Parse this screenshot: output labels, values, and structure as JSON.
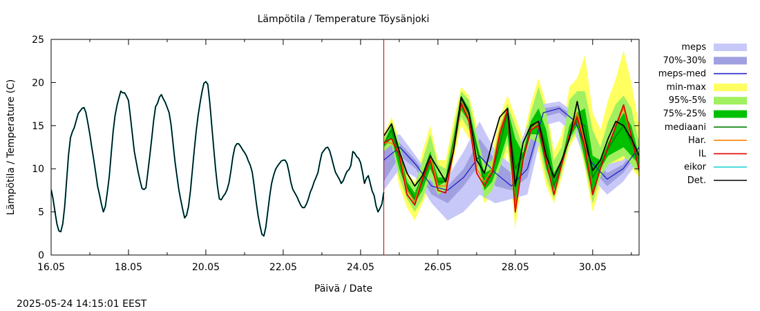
{
  "chart_data": {
    "type": "line",
    "title": "Lämpötila / Temperature   Töysänjoki",
    "xlabel": "Päivä / Date",
    "ylabel": "Lämpötila / Temperature (C)",
    "timestamp": "2025-05-24 14:15:01 EEST",
    "x_unit": "days since 16.05 00:00",
    "xlim": [
      0,
      15.2
    ],
    "ylim": [
      0,
      25
    ],
    "y_ticks": [
      "0",
      "5",
      "10",
      "15",
      "20",
      "25"
    ],
    "x_ticks": [
      {
        "label": "16.05",
        "x": 0
      },
      {
        "label": "18.05",
        "x": 2
      },
      {
        "label": "20.05",
        "x": 4
      },
      {
        "label": "22.05",
        "x": 6
      },
      {
        "label": "24.05",
        "x": 8
      },
      {
        "label": "26.05",
        "x": 10
      },
      {
        "label": "28.05",
        "x": 12
      },
      {
        "label": "30.05",
        "x": 14
      }
    ],
    "forecast_start_x": 8.6,
    "colors": {
      "meps": "#c8c8f8",
      "p70_30": "#a0a0e0",
      "meps_med": "#2020c8",
      "min_max": "#ffff60",
      "p95_5": "#a0f060",
      "p75_25": "#00c000",
      "mediaani": "#008000",
      "har": "#ff8000",
      "il": "#e00000",
      "eikor": "#20d0d0",
      "det": "#000000",
      "now_line": "#c00000"
    },
    "legend": [
      {
        "label": "meps",
        "kind": "fill",
        "color": "#c8c8f8"
      },
      {
        "label": "70%-30%",
        "kind": "fill",
        "color": "#a0a0e0"
      },
      {
        "label": "meps-med",
        "kind": "line",
        "color": "#2020c8"
      },
      {
        "label": "min-max",
        "kind": "fill",
        "color": "#ffff60"
      },
      {
        "label": "95%-5%",
        "kind": "fill",
        "color": "#a0f060"
      },
      {
        "label": "75%-25%",
        "kind": "fill",
        "color": "#00c000"
      },
      {
        "label": "mediaani",
        "kind": "line",
        "color": "#008000"
      },
      {
        "label": "Har.",
        "kind": "line",
        "color": "#ff8000"
      },
      {
        "label": "IL",
        "kind": "line",
        "color": "#e00000"
      },
      {
        "label": "eikor",
        "kind": "line",
        "color": "#20d0d0"
      },
      {
        "label": "Det.",
        "kind": "line",
        "color": "#000000"
      }
    ],
    "observed": [
      [
        0.0,
        7.6
      ],
      [
        0.05,
        6.5
      ],
      [
        0.1,
        5.0
      ],
      [
        0.15,
        3.6
      ],
      [
        0.2,
        2.8
      ],
      [
        0.25,
        2.7
      ],
      [
        0.3,
        3.6
      ],
      [
        0.35,
        5.6
      ],
      [
        0.4,
        8.6
      ],
      [
        0.45,
        11.6
      ],
      [
        0.5,
        13.6
      ],
      [
        0.55,
        14.3
      ],
      [
        0.6,
        14.8
      ],
      [
        0.65,
        15.6
      ],
      [
        0.7,
        16.4
      ],
      [
        0.75,
        16.7
      ],
      [
        0.8,
        17.0
      ],
      [
        0.85,
        17.1
      ],
      [
        0.9,
        16.5
      ],
      [
        0.95,
        15.3
      ],
      [
        1.0,
        14.0
      ],
      [
        1.05,
        12.5
      ],
      [
        1.1,
        11.1
      ],
      [
        1.15,
        9.6
      ],
      [
        1.2,
        8.0
      ],
      [
        1.25,
        7.0
      ],
      [
        1.3,
        5.9
      ],
      [
        1.35,
        5.0
      ],
      [
        1.4,
        5.6
      ],
      [
        1.45,
        7.2
      ],
      [
        1.5,
        9.0
      ],
      [
        1.55,
        11.6
      ],
      [
        1.6,
        14.2
      ],
      [
        1.65,
        16.1
      ],
      [
        1.7,
        17.3
      ],
      [
        1.75,
        18.2
      ],
      [
        1.8,
        19.0
      ],
      [
        1.85,
        18.8
      ],
      [
        1.9,
        18.8
      ],
      [
        1.95,
        18.4
      ],
      [
        2.0,
        17.9
      ],
      [
        2.05,
        16.0
      ],
      [
        2.1,
        14.0
      ],
      [
        2.15,
        12.0
      ],
      [
        2.2,
        10.8
      ],
      [
        2.25,
        9.6
      ],
      [
        2.3,
        8.6
      ],
      [
        2.35,
        7.7
      ],
      [
        2.4,
        7.6
      ],
      [
        2.45,
        7.8
      ],
      [
        2.5,
        9.6
      ],
      [
        2.55,
        11.5
      ],
      [
        2.6,
        13.5
      ],
      [
        2.65,
        15.6
      ],
      [
        2.7,
        17.2
      ],
      [
        2.75,
        17.6
      ],
      [
        2.8,
        18.3
      ],
      [
        2.85,
        18.6
      ],
      [
        2.9,
        18.1
      ],
      [
        2.95,
        17.7
      ],
      [
        3.0,
        17.1
      ],
      [
        3.05,
        16.5
      ],
      [
        3.1,
        15.1
      ],
      [
        3.15,
        13.0
      ],
      [
        3.2,
        10.9
      ],
      [
        3.25,
        9.2
      ],
      [
        3.3,
        7.6
      ],
      [
        3.35,
        6.4
      ],
      [
        3.4,
        5.3
      ],
      [
        3.45,
        4.3
      ],
      [
        3.5,
        4.6
      ],
      [
        3.55,
        5.6
      ],
      [
        3.6,
        7.4
      ],
      [
        3.65,
        9.8
      ],
      [
        3.7,
        12.2
      ],
      [
        3.75,
        14.4
      ],
      [
        3.8,
        16.2
      ],
      [
        3.85,
        17.6
      ],
      [
        3.9,
        18.9
      ],
      [
        3.95,
        19.9
      ],
      [
        4.0,
        20.1
      ],
      [
        4.05,
        19.8
      ],
      [
        4.1,
        17.8
      ],
      [
        4.15,
        15.2
      ],
      [
        4.2,
        12.6
      ],
      [
        4.25,
        10.1
      ],
      [
        4.3,
        8.0
      ],
      [
        4.35,
        6.5
      ],
      [
        4.4,
        6.4
      ],
      [
        4.45,
        6.8
      ],
      [
        4.5,
        7.1
      ],
      [
        4.55,
        7.6
      ],
      [
        4.6,
        8.4
      ],
      [
        4.65,
        9.8
      ],
      [
        4.7,
        11.4
      ],
      [
        4.75,
        12.5
      ],
      [
        4.8,
        12.9
      ],
      [
        4.85,
        12.9
      ],
      [
        4.9,
        12.6
      ],
      [
        4.95,
        12.2
      ],
      [
        5.0,
        11.9
      ],
      [
        5.05,
        11.5
      ],
      [
        5.1,
        10.9
      ],
      [
        5.15,
        10.4
      ],
      [
        5.2,
        9.6
      ],
      [
        5.25,
        8.0
      ],
      [
        5.3,
        6.2
      ],
      [
        5.35,
        4.6
      ],
      [
        5.4,
        3.4
      ],
      [
        5.45,
        2.4
      ],
      [
        5.5,
        2.2
      ],
      [
        5.55,
        3.2
      ],
      [
        5.6,
        5.0
      ],
      [
        5.65,
        6.8
      ],
      [
        5.7,
        8.3
      ],
      [
        5.75,
        9.2
      ],
      [
        5.8,
        9.9
      ],
      [
        5.85,
        10.3
      ],
      [
        5.9,
        10.6
      ],
      [
        5.95,
        10.9
      ],
      [
        6.0,
        11.0
      ],
      [
        6.05,
        11.0
      ],
      [
        6.1,
        10.6
      ],
      [
        6.15,
        9.6
      ],
      [
        6.2,
        8.4
      ],
      [
        6.25,
        7.6
      ],
      [
        6.3,
        7.2
      ],
      [
        6.35,
        6.8
      ],
      [
        6.4,
        6.3
      ],
      [
        6.45,
        5.8
      ],
      [
        6.5,
        5.5
      ],
      [
        6.55,
        5.5
      ],
      [
        6.6,
        5.9
      ],
      [
        6.65,
        6.5
      ],
      [
        6.7,
        7.3
      ],
      [
        6.75,
        7.8
      ],
      [
        6.8,
        8.5
      ],
      [
        6.85,
        9.0
      ],
      [
        6.9,
        9.6
      ],
      [
        6.95,
        10.8
      ],
      [
        7.0,
        11.8
      ],
      [
        7.05,
        12.1
      ],
      [
        7.1,
        12.4
      ],
      [
        7.15,
        12.5
      ],
      [
        7.2,
        12.1
      ],
      [
        7.25,
        11.3
      ],
      [
        7.3,
        10.4
      ],
      [
        7.35,
        9.6
      ],
      [
        7.4,
        9.2
      ],
      [
        7.45,
        8.8
      ],
      [
        7.5,
        8.3
      ],
      [
        7.55,
        8.6
      ],
      [
        7.6,
        9.2
      ],
      [
        7.65,
        9.7
      ],
      [
        7.7,
        9.9
      ],
      [
        7.75,
        10.4
      ],
      [
        7.8,
        12.0
      ],
      [
        7.85,
        11.8
      ],
      [
        7.9,
        11.4
      ],
      [
        7.95,
        11.2
      ],
      [
        8.0,
        10.7
      ],
      [
        8.05,
        9.6
      ],
      [
        8.1,
        8.3
      ],
      [
        8.15,
        8.9
      ],
      [
        8.2,
        9.2
      ],
      [
        8.25,
        8.3
      ],
      [
        8.3,
        7.4
      ],
      [
        8.35,
        6.9
      ],
      [
        8.4,
        5.7
      ],
      [
        8.45,
        5.0
      ],
      [
        8.5,
        5.4
      ],
      [
        8.55,
        5.9
      ],
      [
        8.6,
        7.3
      ]
    ],
    "forecast_x": [
      8.6,
      8.8,
      9.0,
      9.2,
      9.4,
      9.6,
      9.8,
      10.0,
      10.2,
      10.4,
      10.6,
      10.8,
      11.0,
      11.2,
      11.4,
      11.6,
      11.8,
      12.0,
      12.2,
      12.4,
      12.6,
      12.8,
      13.0,
      13.2,
      13.4,
      13.6,
      13.8,
      14.0,
      14.2,
      14.4,
      14.6,
      14.8,
      15.0,
      15.2
    ],
    "meps_band": {
      "low": [
        7.5,
        10.0,
        9.0,
        6.0,
        4.0,
        5.0,
        7.0,
        6.0,
        6.5,
        7.0,
        15.0,
        15.5,
        14.0,
        9.0,
        7.0,
        8.5,
        11.0
      ],
      "high": [
        13.5,
        14.0,
        11.5,
        9.0,
        9.0,
        12.0,
        15.5,
        12.0,
        10.5,
        15.0,
        17.5,
        17.8,
        16.5,
        12.0,
        10.5,
        11.0,
        13.5
      ]
    },
    "p70_30_band": {
      "low": [
        8.5,
        11.5,
        10.0,
        7.0,
        6.0,
        8.0,
        10.5,
        8.0,
        7.5,
        9.0,
        16.0,
        16.5,
        15.0,
        10.0,
        8.0,
        9.5,
        12.0
      ],
      "high": [
        12.5,
        13.0,
        11.0,
        8.5,
        8.0,
        10.0,
        13.5,
        11.0,
        9.5,
        13.0,
        17.0,
        17.3,
        16.0,
        11.5,
        9.5,
        10.5,
        13.0
      ]
    },
    "meps_med": [
      11.0,
      12.5,
      10.5,
      8.0,
      7.5,
      9.0,
      11.5,
      9.5,
      8.0,
      10.0,
      16.5,
      17.0,
      15.5,
      10.8,
      8.8,
      10.0,
      12.5
    ],
    "min_max_band": {
      "low": [
        11.0,
        12.2,
        8.0,
        5.5,
        4.0,
        6.0,
        8.0,
        6.5,
        7.0,
        11.0,
        15.0,
        13.5,
        9.5,
        6.0,
        7.0,
        9.0,
        12.0,
        3.0,
        10.0,
        13.0,
        12.0,
        8.0,
        6.0,
        9.0,
        12.5,
        14.0,
        10.0,
        5.0,
        8.0,
        10.0,
        10.5,
        11.0,
        10.0,
        9.0
      ],
      "high": [
        14.0,
        16.0,
        13.5,
        9.5,
        8.5,
        12.0,
        15.0,
        11.0,
        11.0,
        15.5,
        19.5,
        18.5,
        15.0,
        11.5,
        12.0,
        16.0,
        18.5,
        16.0,
        13.5,
        17.5,
        20.5,
        17.5,
        12.0,
        14.0,
        19.5,
        20.5,
        23.2,
        16.5,
        14.5,
        18.0,
        20.5,
        23.7,
        20.0,
        15.0
      ]
    },
    "p95_5_band": {
      "low": [
        12.0,
        12.8,
        9.0,
        6.5,
        5.0,
        6.5,
        9.0,
        7.0,
        7.5,
        11.5,
        16.0,
        14.5,
        11.0,
        6.5,
        7.5,
        10.0,
        13.0,
        4.5,
        10.5,
        13.5,
        13.0,
        9.0,
        6.5,
        9.5,
        13.0,
        14.5,
        10.5,
        6.0,
        9.0,
        10.5,
        11.0,
        11.5,
        10.5,
        9.5
      ],
      "high": [
        13.5,
        15.5,
        13.0,
        9.0,
        8.0,
        11.0,
        14.0,
        10.5,
        10.0,
        14.5,
        19.0,
        18.0,
        14.0,
        10.5,
        11.0,
        15.0,
        17.5,
        15.0,
        12.5,
        16.5,
        19.5,
        16.5,
        11.0,
        12.5,
        18.0,
        19.0,
        19.0,
        14.5,
        12.5,
        15.5,
        17.5,
        18.5,
        17.0,
        13.0
      ]
    },
    "p75_25_band": {
      "low": [
        12.5,
        13.5,
        10.0,
        7.5,
        6.0,
        7.5,
        10.0,
        8.0,
        8.5,
        12.5,
        16.8,
        15.5,
        12.0,
        7.5,
        8.5,
        11.0,
        14.0,
        5.5,
        11.0,
        14.0,
        14.0,
        10.0,
        7.5,
        10.5,
        13.5,
        15.0,
        11.0,
        7.0,
        10.0,
        11.5,
        12.0,
        12.5,
        11.5,
        10.5
      ],
      "high": [
        13.0,
        15.0,
        12.5,
        8.5,
        7.2,
        9.5,
        12.0,
        9.0,
        9.0,
        13.5,
        18.5,
        17.0,
        13.0,
        9.5,
        10.0,
        14.5,
        17.0,
        13.5,
        11.8,
        15.5,
        17.0,
        14.5,
        9.5,
        11.0,
        15.0,
        16.5,
        17.0,
        11.5,
        11.0,
        13.0,
        15.0,
        16.5,
        15.0,
        11.5
      ]
    },
    "mediaani": [
      12.8,
      14.5,
      11.5,
      8.0,
      6.5,
      8.5,
      11.0,
      8.5,
      8.5,
      13.0,
      17.8,
      16.5,
      12.5,
      8.5,
      9.5,
      12.8,
      16.5,
      10.0,
      11.5,
      14.8,
      15.5,
      12.5,
      8.0,
      10.8,
      14.3,
      15.5,
      15.0,
      9.0,
      10.5,
      12.3,
      13.8,
      15.0,
      13.0,
      11.0
    ],
    "har": [
      13.0,
      13.0,
      12.0,
      7.5,
      6.2,
      9.0,
      11.5,
      8.0,
      8.0,
      12.5,
      17.8,
      16.0,
      10.0,
      8.5,
      10.0,
      14.5,
      17.0,
      5.5,
      11.0,
      14.5,
      15.5,
      11.0,
      7.0,
      10.5,
      14.0,
      16.5,
      13.0,
      7.0,
      10.0,
      12.5,
      15.0,
      17.0,
      13.5,
      10.0
    ],
    "il": [
      13.0,
      13.5,
      11.5,
      7.0,
      5.8,
      8.8,
      11.0,
      7.5,
      7.2,
      12.0,
      17.6,
      15.5,
      9.5,
      8.0,
      9.5,
      14.0,
      16.8,
      5.0,
      11.0,
      14.5,
      15.0,
      10.8,
      7.0,
      10.5,
      13.8,
      16.0,
      12.5,
      7.0,
      10.0,
      12.5,
      15.0,
      17.4,
      13.8,
      9.8
    ],
    "det": [
      13.8,
      15.2,
      12.0,
      9.5,
      8.0,
      9.2,
      11.5,
      10.0,
      8.5,
      12.0,
      18.3,
      16.5,
      11.0,
      9.5,
      13.0,
      16.0,
      17.0,
      8.0,
      13.0,
      15.0,
      15.5,
      11.5,
      9.0,
      11.0,
      13.5,
      17.8,
      13.5,
      9.8,
      11.0,
      13.5,
      15.5,
      15.0,
      13.5,
      11.5
    ]
  }
}
